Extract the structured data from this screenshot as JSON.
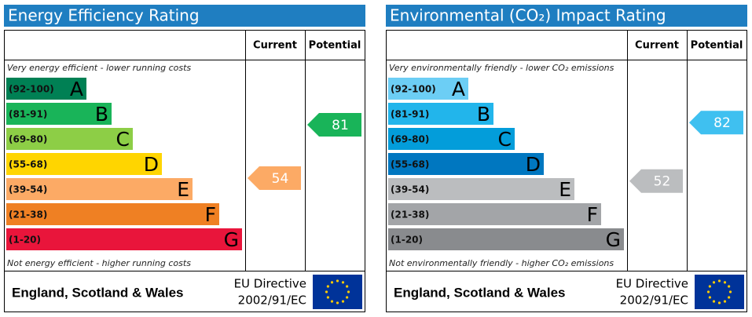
{
  "chart_data": [
    {
      "type": "epc",
      "title": "Energy Efficiency Rating",
      "column_headers": [
        "Current",
        "Potential"
      ],
      "top_note": "Very energy efficient - lower running costs",
      "bottom_note": "Not energy efficient - higher running costs",
      "bands": [
        {
          "label": "(92-100)",
          "letter": "A",
          "color": "#008054"
        },
        {
          "label": "(81-91)",
          "letter": "B",
          "color": "#19b459"
        },
        {
          "label": "(69-80)",
          "letter": "C",
          "color": "#8dce46"
        },
        {
          "label": "(55-68)",
          "letter": "D",
          "color": "#ffd500"
        },
        {
          "label": "(39-54)",
          "letter": "E",
          "color": "#fcaa65"
        },
        {
          "label": "(21-38)",
          "letter": "F",
          "color": "#ef8023"
        },
        {
          "label": "(1-20)",
          "letter": "G",
          "color": "#e9153b"
        }
      ],
      "current": {
        "value": 54,
        "color": "#fcaa65"
      },
      "potential": {
        "value": 81,
        "color": "#19b459"
      },
      "region": "England, Scotland & Wales",
      "directive": [
        "EU Directive",
        "2002/91/EC"
      ]
    },
    {
      "type": "epc",
      "title": "Environmental (CO₂) Impact Rating",
      "column_headers": [
        "Current",
        "Potential"
      ],
      "top_note": "Very environmentally friendly - lower CO₂ emissions",
      "bottom_note": "Not environmentally friendly - higher CO₂ emissions",
      "bands": [
        {
          "label": "(92-100)",
          "letter": "A",
          "color": "#6ccef5"
        },
        {
          "label": "(81-91)",
          "letter": "B",
          "color": "#22b5eb"
        },
        {
          "label": "(69-80)",
          "letter": "C",
          "color": "#039dda"
        },
        {
          "label": "(55-68)",
          "letter": "D",
          "color": "#0077c0"
        },
        {
          "label": "(39-54)",
          "letter": "E",
          "color": "#bbbdbf"
        },
        {
          "label": "(21-38)",
          "letter": "F",
          "color": "#a3a5a8"
        },
        {
          "label": "(1-20)",
          "letter": "G",
          "color": "#898b8e"
        }
      ],
      "current": {
        "value": 52,
        "color": "#bbbdbf"
      },
      "potential": {
        "value": 82,
        "color": "#3fc0f0"
      },
      "region": "England, Scotland & Wales",
      "directive": [
        "EU Directive",
        "2002/91/EC"
      ]
    }
  ]
}
